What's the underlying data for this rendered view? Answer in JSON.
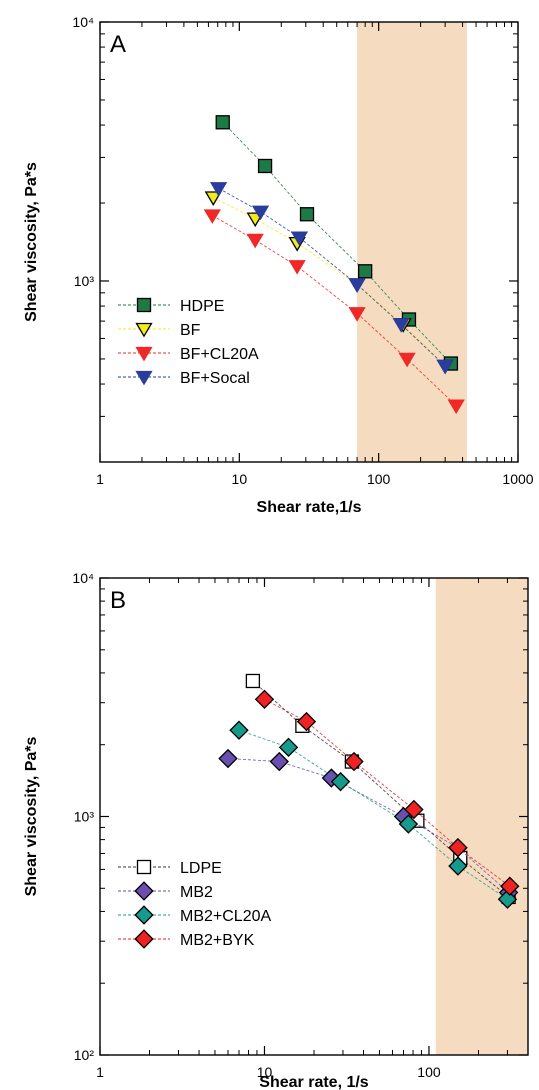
{
  "chart_data": [
    {
      "panel": "A",
      "type": "scatter",
      "xlabel": "Shear rate,1/s",
      "ylabel": "Shear viscosity, Pa*s",
      "xscale": "log",
      "yscale": "log",
      "xlim": [
        1,
        1000
      ],
      "ylim": [
        200,
        10000
      ],
      "xticks": [
        1,
        10,
        100,
        1000
      ],
      "xtick_labels": [
        "1",
        "10",
        "100",
        "1000"
      ],
      "yticks": [
        1000,
        10000
      ],
      "ytick_labels": [
        "10³",
        "10⁴"
      ],
      "shaded_region": {
        "x": [
          70,
          430
        ],
        "color": "#f5dcc0"
      },
      "legend_position": "center-left",
      "series": [
        {
          "name": "HDPE",
          "marker": "square",
          "fill": "#1e7a44",
          "stroke": "#000000",
          "x": [
            7.6,
            15.3,
            30.6,
            80,
            165,
            330
          ],
          "y": [
            4100,
            2780,
            1810,
            1090,
            710,
            480
          ]
        },
        {
          "name": "BF",
          "marker": "triangle-down",
          "fill": "#f2ea1c",
          "stroke": "#000000",
          "x": [
            6.5,
            13,
            26,
            70,
            150,
            300
          ],
          "y": [
            2100,
            1740,
            1400,
            970,
            680,
            470
          ]
        },
        {
          "name": "BF+CL20A",
          "marker": "triangle-down",
          "fill": "#f02828",
          "stroke": "#f02828",
          "x": [
            6.4,
            13,
            26,
            70,
            160,
            360
          ],
          "y": [
            1790,
            1440,
            1140,
            750,
            500,
            330
          ]
        },
        {
          "name": "BF+Socal",
          "marker": "triangle-down",
          "fill": "#2a3c9e",
          "stroke": "#2a3c9e",
          "x": [
            7.1,
            14.2,
            27,
            70,
            145,
            300
          ],
          "y": [
            2280,
            1850,
            1470,
            970,
            680,
            470
          ]
        }
      ]
    },
    {
      "panel": "B",
      "type": "scatter",
      "xlabel": "Shear rate, 1/s",
      "ylabel": "Shear viscosity, Pa*s",
      "xscale": "log",
      "yscale": "log",
      "xlim": [
        1,
        400
      ],
      "ylim": [
        100,
        10000
      ],
      "xticks": [
        1,
        10,
        100
      ],
      "xtick_labels": [
        "1",
        "10",
        "100"
      ],
      "yticks": [
        100,
        1000,
        10000
      ],
      "ytick_labels": [
        "10²",
        "10³",
        "10⁴"
      ],
      "shaded_region": {
        "x": [
          110,
          400
        ],
        "color": "#f5dcc0"
      },
      "legend_position": "bottom-left",
      "series": [
        {
          "name": "LDPE",
          "marker": "square-open",
          "fill": "#ffffff",
          "stroke": "#000000",
          "x": [
            8.5,
            17,
            34,
            85,
            155,
            305
          ],
          "y": [
            3700,
            2400,
            1700,
            960,
            670,
            460
          ]
        },
        {
          "name": "MB2",
          "marker": "diamond",
          "fill": "#6a4fb0",
          "stroke": "#000000",
          "x": [
            6,
            12.3,
            25.5,
            70,
            150,
            305
          ],
          "y": [
            1750,
            1700,
            1450,
            1000,
            740,
            480
          ]
        },
        {
          "name": "MB2+CL20A",
          "marker": "diamond",
          "fill": "#169a8c",
          "stroke": "#000000",
          "x": [
            7,
            14,
            29,
            75,
            150,
            300
          ],
          "y": [
            2300,
            1950,
            1400,
            930,
            620,
            450
          ]
        },
        {
          "name": "MB2+BYK",
          "marker": "diamond",
          "fill": "#ee2222",
          "stroke": "#000000",
          "x": [
            10,
            18,
            35,
            81,
            150,
            310
          ],
          "y": [
            3100,
            2500,
            1700,
            1070,
            740,
            510
          ]
        }
      ]
    }
  ]
}
